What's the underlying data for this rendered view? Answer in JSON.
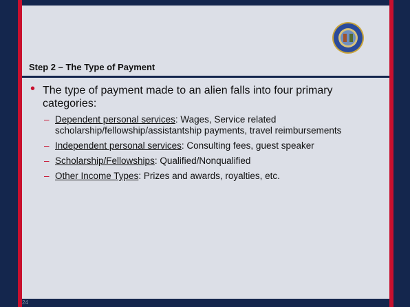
{
  "title": "Step 2 – The Type of Payment",
  "bullet": "The type of payment made to an alien falls into four primary categories:",
  "items": [
    {
      "term": "Dependent personal services",
      "text": ":  Wages, Service related scholarship/fellowship/assistantship payments, travel reimbursements"
    },
    {
      "term": "Independent personal services",
      "text": ":  Consulting fees, guest speaker"
    },
    {
      "term": "Scholarship/Fellowships",
      "text": ":  Qualified/Nonqualified"
    },
    {
      "term": "Other Income Types",
      "text": ":  Prizes and awards, royalties, etc."
    }
  ],
  "page_number": "24"
}
